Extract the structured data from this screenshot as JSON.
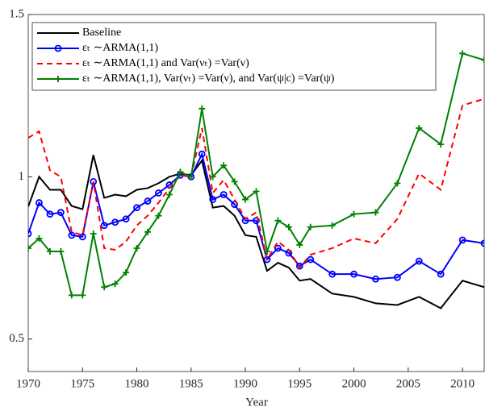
{
  "chart_data": {
    "type": "line",
    "xlabel": "Year",
    "x": [
      1970,
      1971,
      1972,
      1973,
      1974,
      1975,
      1976,
      1977,
      1978,
      1979,
      1980,
      1981,
      1982,
      1983,
      1984,
      1985,
      1986,
      1987,
      1988,
      1989,
      1990,
      1991,
      1992,
      1993,
      1994,
      1995,
      1996,
      1998,
      2000,
      2002,
      2004,
      2006,
      2008,
      2010,
      2012
    ],
    "xlim": [
      1970,
      2012
    ],
    "xticks": [
      1970,
      1975,
      1980,
      1985,
      1990,
      1995,
      2000,
      2005,
      2010
    ],
    "ylim": [
      0.4,
      1.5
    ],
    "yticks": [
      0.5,
      1,
      1.5
    ],
    "grid": false,
    "legend_loc": "upper left",
    "series": [
      {
        "name": "Baseline",
        "color": "#000000",
        "style": "solid",
        "marker": "none",
        "values": [
          0.908,
          1.0,
          0.96,
          0.96,
          0.91,
          0.9,
          1.067,
          0.935,
          0.945,
          0.94,
          0.96,
          0.965,
          0.98,
          1.0,
          1.01,
          1.005,
          1.05,
          0.905,
          0.91,
          0.88,
          0.82,
          0.815,
          0.71,
          0.735,
          0.72,
          0.68,
          0.685,
          0.64,
          0.63,
          0.61,
          0.605,
          0.63,
          0.595,
          0.68,
          0.66
        ]
      },
      {
        "name": "εₜ ∼ARMA(1,1)",
        "color": "#0000ff",
        "style": "solid",
        "marker": "circle",
        "values": [
          0.825,
          0.92,
          0.885,
          0.89,
          0.82,
          0.815,
          0.985,
          0.85,
          0.86,
          0.87,
          0.905,
          0.925,
          0.95,
          0.975,
          1.005,
          1.0,
          1.07,
          0.93,
          0.945,
          0.915,
          0.865,
          0.865,
          0.745,
          0.78,
          0.765,
          0.725,
          0.745,
          0.7,
          0.7,
          0.685,
          0.69,
          0.74,
          0.7,
          0.805,
          0.795
        ]
      },
      {
        "name": "εₜ ∼ARMA(1,1) and Var(νₜ) =Var(ν)",
        "color": "#ff0000",
        "style": "dashed",
        "marker": "none",
        "values": [
          1.12,
          1.14,
          1.02,
          1.0,
          0.83,
          0.82,
          0.985,
          0.78,
          0.775,
          0.8,
          0.85,
          0.88,
          0.92,
          0.965,
          1.005,
          1.0,
          1.15,
          0.95,
          0.99,
          0.93,
          0.87,
          0.89,
          0.745,
          0.8,
          0.775,
          0.72,
          0.76,
          0.78,
          0.81,
          0.795,
          0.87,
          1.01,
          0.96,
          1.22,
          1.24
        ]
      },
      {
        "name": "εₜ ∼ARMA(1,1), Var(νₜ) =Var(ν), and Var(ψ|c) =Var(ψ)",
        "color": "#008000",
        "style": "solid",
        "marker": "plus",
        "values": [
          0.78,
          0.81,
          0.77,
          0.77,
          0.635,
          0.635,
          0.825,
          0.66,
          0.67,
          0.705,
          0.78,
          0.83,
          0.88,
          0.945,
          1.015,
          1.0,
          1.21,
          1.0,
          1.035,
          0.985,
          0.93,
          0.955,
          0.77,
          0.865,
          0.845,
          0.79,
          0.845,
          0.85,
          0.885,
          0.89,
          0.98,
          1.15,
          1.1,
          1.38,
          1.36
        ]
      }
    ]
  }
}
